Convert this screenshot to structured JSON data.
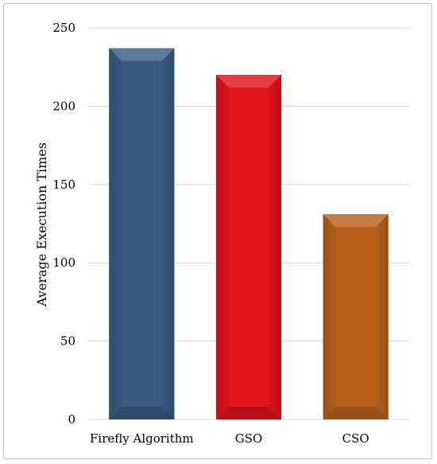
{
  "chart_data": {
    "type": "bar",
    "title": "",
    "xlabel": "",
    "ylabel": "Average Execution Times",
    "ylim": [
      0,
      250
    ],
    "yticks": [
      0,
      50,
      100,
      150,
      200,
      250
    ],
    "grid": true,
    "legend": "none",
    "categories": [
      "Firefly Algorithm",
      "GSO",
      "CSO"
    ],
    "values": [
      237,
      220,
      131
    ],
    "colors": [
      "#3a5a82",
      "#e0141c",
      "#b8611c"
    ]
  }
}
